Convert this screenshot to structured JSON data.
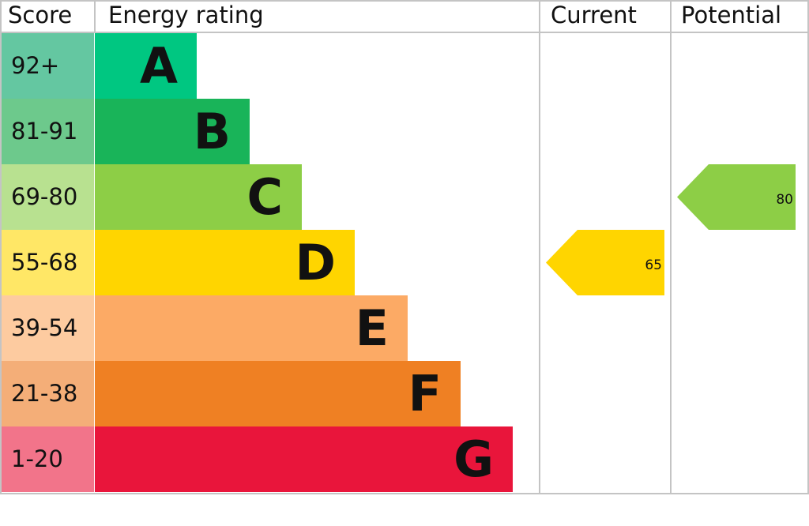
{
  "chart_data": {
    "type": "table",
    "headers": {
      "score": "Score",
      "rating": "Energy rating",
      "current": "Current",
      "potential": "Potential"
    },
    "bands": [
      {
        "letter": "A",
        "range": "92+",
        "color": "#00c781",
        "score_color": "#64c7a1"
      },
      {
        "letter": "B",
        "range": "81-91",
        "color": "#19b459",
        "score_color": "#6dc98c"
      },
      {
        "letter": "C",
        "range": "69-80",
        "color": "#8dce46",
        "score_color": "#b8e190"
      },
      {
        "letter": "D",
        "range": "55-68",
        "color": "#ffd500",
        "score_color": "#ffe766"
      },
      {
        "letter": "E",
        "range": "39-54",
        "color": "#fcaa65",
        "score_color": "#fdcba0"
      },
      {
        "letter": "F",
        "range": "21-38",
        "color": "#ef8023",
        "score_color": "#f4ae78"
      },
      {
        "letter": "G",
        "range": "1-20",
        "color": "#e9153b",
        "score_color": "#f2748a"
      }
    ],
    "current": {
      "value": "65",
      "band": "D"
    },
    "potential": {
      "value": "80",
      "band": "C"
    }
  }
}
